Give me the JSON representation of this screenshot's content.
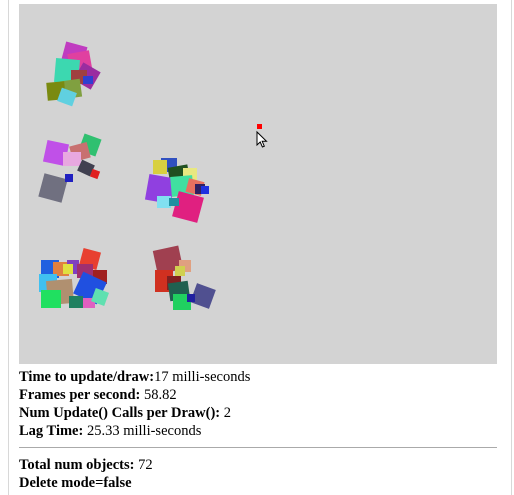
{
  "stats": {
    "update_label": "Time to update/draw:",
    "update_value": "17 milli-seconds",
    "fps_label": "Frames per second:",
    "fps_value": " 58.82",
    "calls_label": "Num Update() Calls per Draw():",
    "calls_value": " 2",
    "lag_label": "Lag Time:",
    "lag_value": " 25.33 milli-seconds"
  },
  "objects": {
    "total_label": "Total num objects:",
    "total_value": " 72",
    "delete_mode": "Delete mode=false"
  },
  "colors": {
    "canvas_bg": "#d3d3d3",
    "hero": "#ff0000"
  },
  "cursor_icon": "arrow-pointer-icon"
}
